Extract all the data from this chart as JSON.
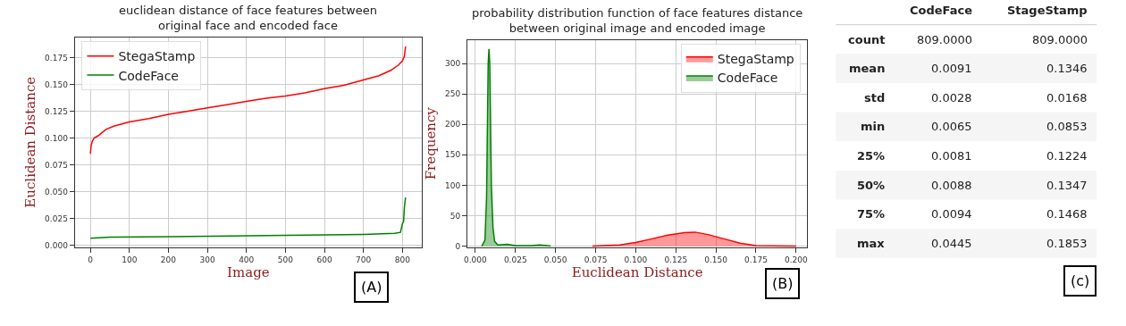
{
  "chart_data": [
    {
      "type": "line",
      "title": "euclidean distance of face features between\noriginal face and encoded face",
      "xlabel": "Image",
      "ylabel": "Euclidean Distance",
      "annotations": [
        "(A)"
      ],
      "xlim": [
        -40,
        850
      ],
      "xticks": [
        0,
        100,
        200,
        300,
        400,
        500,
        600,
        700,
        800
      ],
      "ylim": [
        -0.002,
        0.194
      ],
      "yticks": [
        {
          "value": 0,
          "label": "0.000"
        },
        {
          "value": 0.025,
          "label": "0.025"
        },
        {
          "value": 0.05,
          "label": "0.050"
        },
        {
          "value": 0.075,
          "label": "0.075"
        },
        {
          "value": 0.1,
          "label": "0.100"
        },
        {
          "value": 0.125,
          "label": "0.125"
        },
        {
          "value": 0.15,
          "label": "0.150"
        },
        {
          "value": 0.175,
          "label": "0.175"
        }
      ],
      "grid": true,
      "legend": "top left",
      "series": [
        {
          "name": "StegaStamp",
          "color": "#ff0000",
          "x": [
            0,
            2,
            5,
            10,
            20,
            30,
            40,
            60,
            100,
            150,
            200,
            250,
            300,
            350,
            400,
            450,
            500,
            550,
            600,
            650,
            700,
            740,
            770,
            790,
            800,
            805,
            808
          ],
          "values": [
            0.0853,
            0.093,
            0.097,
            0.1,
            0.102,
            0.105,
            0.108,
            0.111,
            0.115,
            0.118,
            0.122,
            0.125,
            0.128,
            0.131,
            0.134,
            0.137,
            0.139,
            0.142,
            0.146,
            0.149,
            0.154,
            0.158,
            0.163,
            0.168,
            0.172,
            0.176,
            0.1853
          ]
        },
        {
          "name": "CodeFace",
          "color": "#008000",
          "x": [
            0,
            50,
            200,
            400,
            600,
            700,
            780,
            795,
            800,
            803,
            805,
            808
          ],
          "values": [
            0.0065,
            0.0075,
            0.008,
            0.0088,
            0.0095,
            0.01,
            0.011,
            0.012,
            0.02,
            0.022,
            0.035,
            0.0445
          ]
        }
      ]
    },
    {
      "type": "area",
      "title": "probability distribution function of face features distance\nbetween original image and encoded image",
      "xlabel": "Euclidean Distance",
      "ylabel": "Frequency",
      "annotations": [
        "(B)"
      ],
      "xlim": [
        -0.005,
        0.207
      ],
      "xticks": [
        {
          "value": 0,
          "label": "0.000"
        },
        {
          "value": 0.025,
          "label": "0.025"
        },
        {
          "value": 0.05,
          "label": "0.050"
        },
        {
          "value": 0.075,
          "label": "0.075"
        },
        {
          "value": 0.1,
          "label": "0.100"
        },
        {
          "value": 0.125,
          "label": "0.125"
        },
        {
          "value": 0.15,
          "label": "0.150"
        },
        {
          "value": 0.175,
          "label": "0.175"
        },
        {
          "value": 0.2,
          "label": "0.200"
        }
      ],
      "ylim": [
        -2,
        339
      ],
      "yticks": [
        0,
        50,
        100,
        150,
        200,
        250,
        300
      ],
      "grid": true,
      "legend": "top right",
      "series": [
        {
          "name": "StegaStamp",
          "color": "#ff0000",
          "x": [
            0.073,
            0.09,
            0.1,
            0.11,
            0.12,
            0.13,
            0.137,
            0.145,
            0.155,
            0.165,
            0.175,
            0.185,
            0.2
          ],
          "values": [
            0,
            2,
            6,
            12,
            18,
            22,
            23,
            19,
            12,
            5,
            1,
            0.5,
            0
          ]
        },
        {
          "name": "CodeFace",
          "color": "#008000",
          "x": [
            0.004,
            0.006,
            0.007,
            0.0075,
            0.008,
            0.0085,
            0.009,
            0.0095,
            0.01,
            0.011,
            0.012,
            0.014,
            0.02,
            0.025,
            0.035,
            0.04,
            0.045,
            0.047
          ],
          "values": [
            0,
            10,
            80,
            190,
            300,
            324,
            300,
            200,
            100,
            30,
            8,
            2,
            3,
            1,
            1,
            2,
            1,
            0
          ]
        }
      ]
    },
    {
      "type": "other",
      "categories": [
        "CodeFace",
        "StageStamp"
      ],
      "y_categories": [
        "count",
        "mean",
        "std",
        "min",
        "25%",
        "50%",
        "75%",
        "max"
      ],
      "cell_labels": [
        [
          "809.0000",
          "809.0000"
        ],
        [
          "0.0091",
          "0.1346"
        ],
        [
          "0.0028",
          "0.0168"
        ],
        [
          "0.0065",
          "0.0853"
        ],
        [
          "0.0081",
          "0.1224"
        ],
        [
          "0.0088",
          "0.1347"
        ],
        [
          "0.0094",
          "0.1468"
        ],
        [
          "0.0445",
          "0.1853"
        ]
      ],
      "annotations": [
        "(c)"
      ]
    }
  ]
}
